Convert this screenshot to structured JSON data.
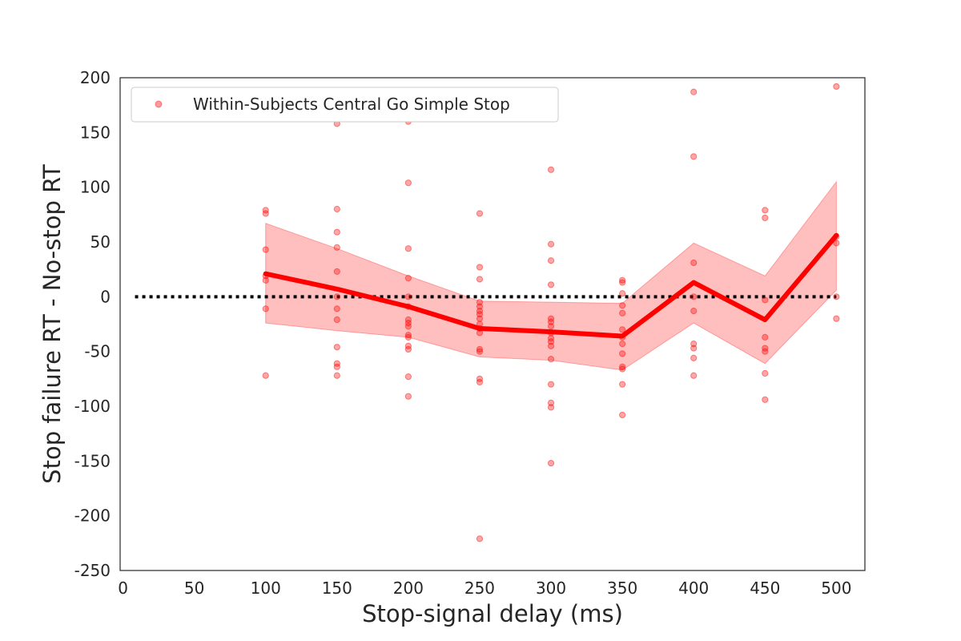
{
  "chart_data": {
    "type": "line",
    "xlabel": "Stop-signal delay (ms)",
    "ylabel": "Stop failure RT - No-stop RT",
    "xlim": [
      -2,
      520
    ],
    "ylim": [
      -250,
      200
    ],
    "x_ticks": [
      0,
      50,
      100,
      150,
      200,
      250,
      300,
      350,
      400,
      450,
      500
    ],
    "y_ticks": [
      200,
      150,
      100,
      50,
      0,
      -50,
      -100,
      -150,
      -200,
      -250
    ],
    "grid": false,
    "legend": {
      "placement": "top-left",
      "entries": [
        "Within-Subjects Central Go Simple Stop"
      ]
    },
    "reference_line": {
      "y": 0,
      "style": "dotted",
      "color": "#000000"
    },
    "colors": {
      "series": "#ff0000",
      "band": "#ff0000",
      "points": "#ff0000",
      "frame": "#262626"
    },
    "mean_line": {
      "x": [
        100,
        150,
        200,
        250,
        300,
        350,
        400,
        450,
        500
      ],
      "y": [
        21,
        7,
        -9,
        -29,
        -32,
        -36,
        13,
        -21,
        56
      ]
    },
    "confidence_band": {
      "x": [
        100,
        150,
        200,
        250,
        300,
        350,
        400,
        450,
        500
      ],
      "lower": [
        -24,
        -31,
        -37,
        -55,
        -58,
        -67,
        -24,
        -61,
        6
      ],
      "upper": [
        67,
        44,
        19,
        -4,
        -5,
        -6,
        49,
        19,
        105
      ]
    },
    "series": [
      {
        "name": "Within-Subjects Central Go Simple Stop",
        "points": [
          [
            100,
            79
          ],
          [
            100,
            76
          ],
          [
            100,
            43
          ],
          [
            100,
            19
          ],
          [
            100,
            15
          ],
          [
            100,
            -11
          ],
          [
            100,
            -72
          ],
          [
            150,
            158
          ],
          [
            150,
            80
          ],
          [
            150,
            59
          ],
          [
            150,
            45
          ],
          [
            150,
            23
          ],
          [
            150,
            0
          ],
          [
            150,
            -11
          ],
          [
            150,
            -21
          ],
          [
            150,
            -46
          ],
          [
            150,
            -61
          ],
          [
            150,
            -64
          ],
          [
            150,
            -72
          ],
          [
            200,
            160
          ],
          [
            200,
            104
          ],
          [
            200,
            44
          ],
          [
            200,
            17
          ],
          [
            200,
            0
          ],
          [
            200,
            -9
          ],
          [
            200,
            -21
          ],
          [
            200,
            -24
          ],
          [
            200,
            -27
          ],
          [
            200,
            -35
          ],
          [
            200,
            -37
          ],
          [
            200,
            -45
          ],
          [
            200,
            -48
          ],
          [
            200,
            -73
          ],
          [
            200,
            -91
          ],
          [
            250,
            76
          ],
          [
            250,
            27
          ],
          [
            250,
            16
          ],
          [
            250,
            -5
          ],
          [
            250,
            -9
          ],
          [
            250,
            -13
          ],
          [
            250,
            -16
          ],
          [
            250,
            -20
          ],
          [
            250,
            -25
          ],
          [
            250,
            -29
          ],
          [
            250,
            -33
          ],
          [
            250,
            -48
          ],
          [
            250,
            -50
          ],
          [
            250,
            -75
          ],
          [
            250,
            -78
          ],
          [
            250,
            -221
          ],
          [
            300,
            116
          ],
          [
            300,
            48
          ],
          [
            300,
            33
          ],
          [
            300,
            11
          ],
          [
            300,
            -20
          ],
          [
            300,
            -23
          ],
          [
            300,
            -27
          ],
          [
            300,
            -33
          ],
          [
            300,
            -38
          ],
          [
            300,
            -41
          ],
          [
            300,
            -45
          ],
          [
            300,
            -57
          ],
          [
            300,
            -80
          ],
          [
            300,
            -97
          ],
          [
            300,
            -101
          ],
          [
            300,
            -152
          ],
          [
            350,
            15
          ],
          [
            350,
            13
          ],
          [
            350,
            3
          ],
          [
            350,
            -8
          ],
          [
            350,
            -15
          ],
          [
            350,
            -30
          ],
          [
            350,
            -37
          ],
          [
            350,
            -43
          ],
          [
            350,
            -52
          ],
          [
            350,
            -64
          ],
          [
            350,
            -66
          ],
          [
            350,
            -80
          ],
          [
            350,
            -108
          ],
          [
            400,
            187
          ],
          [
            400,
            128
          ],
          [
            400,
            31
          ],
          [
            400,
            0
          ],
          [
            400,
            -13
          ],
          [
            400,
            -43
          ],
          [
            400,
            -47
          ],
          [
            400,
            -56
          ],
          [
            400,
            -72
          ],
          [
            450,
            79
          ],
          [
            450,
            72
          ],
          [
            450,
            -3
          ],
          [
            450,
            -37
          ],
          [
            450,
            -47
          ],
          [
            450,
            -50
          ],
          [
            450,
            -70
          ],
          [
            450,
            -94
          ],
          [
            500,
            192
          ],
          [
            500,
            55
          ],
          [
            500,
            49
          ],
          [
            500,
            0
          ],
          [
            500,
            -20
          ]
        ]
      }
    ]
  }
}
